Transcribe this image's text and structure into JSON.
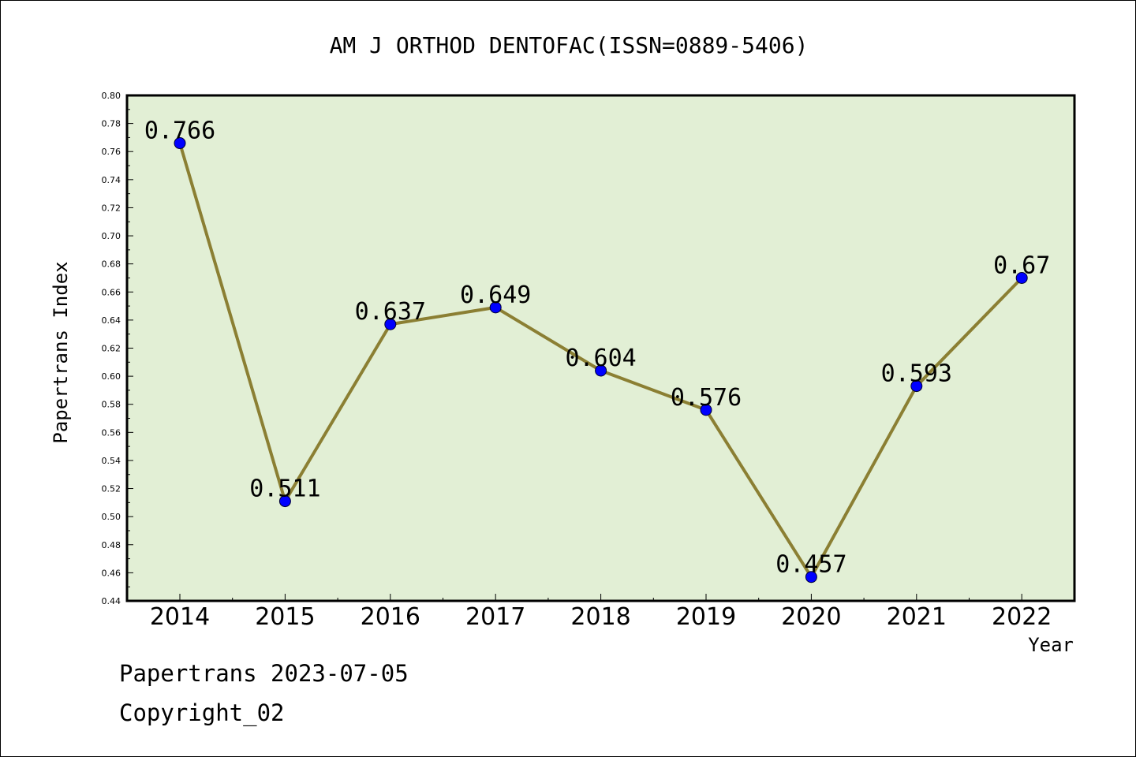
{
  "chart_data": {
    "type": "line",
    "title": "AM J ORTHOD DENTOFAC(ISSN=0889-5406)",
    "xlabel": "Year",
    "ylabel": "Papertrans Index",
    "categories": [
      "2014",
      "2015",
      "2016",
      "2017",
      "2018",
      "2019",
      "2020",
      "2021",
      "2022"
    ],
    "values": [
      0.766,
      0.511,
      0.637,
      0.649,
      0.604,
      0.576,
      0.457,
      0.593,
      0.67
    ],
    "data_labels": [
      "0.766",
      "0.511",
      "0.637",
      "0.649",
      "0.604",
      "0.576",
      "0.457",
      "0.593",
      "0.67"
    ],
    "ylim": [
      0.44,
      0.8
    ],
    "yticks": [
      "0.44",
      "0.46",
      "0.48",
      "0.50",
      "0.52",
      "0.54",
      "0.56",
      "0.58",
      "0.60",
      "0.62",
      "0.64",
      "0.66",
      "0.68",
      "0.70",
      "0.72",
      "0.74",
      "0.76",
      "0.78",
      "0.80"
    ],
    "grid": false,
    "legend": "none",
    "colors": {
      "plot_background": "#e2efd5",
      "line": "#8b7f33",
      "marker": "#0000ff"
    }
  },
  "footer": {
    "date_text": "Papertrans 2023-07-05",
    "copyright_text": "Copyright_02"
  }
}
